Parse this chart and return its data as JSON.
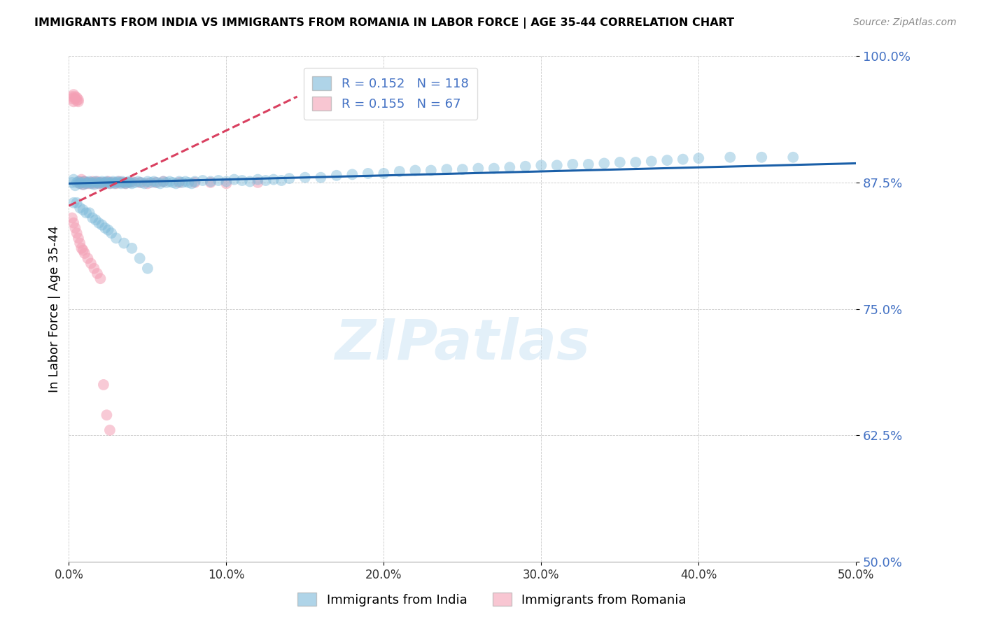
{
  "title": "IMMIGRANTS FROM INDIA VS IMMIGRANTS FROM ROMANIA IN LABOR FORCE | AGE 35-44 CORRELATION CHART",
  "source": "Source: ZipAtlas.com",
  "ylabel": "In Labor Force | Age 35-44",
  "xlim": [
    0.0,
    0.5
  ],
  "ylim": [
    0.5,
    1.0
  ],
  "yticks": [
    0.5,
    0.625,
    0.75,
    0.875,
    1.0
  ],
  "ytick_labels": [
    "50.0%",
    "62.5%",
    "75.0%",
    "87.5%",
    "100.0%"
  ],
  "xticks": [
    0.0,
    0.1,
    0.2,
    0.3,
    0.4,
    0.5
  ],
  "xtick_labels": [
    "0.0%",
    "10.0%",
    "20.0%",
    "30.0%",
    "40.0%",
    "50.0%"
  ],
  "india_color": "#7ab8d9",
  "romania_color": "#f4a0b5",
  "india_trend_color": "#1a5fa8",
  "romania_trend_color": "#d94060",
  "legend_india_R": "0.152",
  "legend_india_N": "118",
  "legend_romania_R": "0.155",
  "legend_romania_N": "67",
  "watermark": "ZIPatlas",
  "india_scatter_x": [
    0.002,
    0.003,
    0.004,
    0.005,
    0.006,
    0.007,
    0.008,
    0.009,
    0.01,
    0.011,
    0.012,
    0.013,
    0.014,
    0.015,
    0.016,
    0.017,
    0.018,
    0.019,
    0.02,
    0.021,
    0.022,
    0.023,
    0.024,
    0.025,
    0.026,
    0.027,
    0.028,
    0.029,
    0.03,
    0.031,
    0.032,
    0.033,
    0.034,
    0.035,
    0.036,
    0.037,
    0.038,
    0.039,
    0.04,
    0.042,
    0.044,
    0.046,
    0.048,
    0.05,
    0.052,
    0.054,
    0.056,
    0.058,
    0.06,
    0.062,
    0.064,
    0.066,
    0.068,
    0.07,
    0.072,
    0.074,
    0.076,
    0.078,
    0.08,
    0.085,
    0.09,
    0.095,
    0.1,
    0.105,
    0.11,
    0.115,
    0.12,
    0.125,
    0.13,
    0.135,
    0.14,
    0.15,
    0.16,
    0.17,
    0.18,
    0.19,
    0.2,
    0.21,
    0.22,
    0.23,
    0.24,
    0.25,
    0.26,
    0.27,
    0.28,
    0.29,
    0.3,
    0.31,
    0.32,
    0.33,
    0.34,
    0.35,
    0.36,
    0.37,
    0.38,
    0.39,
    0.4,
    0.42,
    0.44,
    0.46,
    0.003,
    0.005,
    0.007,
    0.009,
    0.011,
    0.013,
    0.015,
    0.017,
    0.019,
    0.021,
    0.023,
    0.025,
    0.027,
    0.03,
    0.035,
    0.04,
    0.045,
    0.05
  ],
  "india_scatter_y": [
    0.875,
    0.878,
    0.872,
    0.875,
    0.876,
    0.874,
    0.875,
    0.873,
    0.876,
    0.874,
    0.875,
    0.876,
    0.874,
    0.875,
    0.873,
    0.876,
    0.875,
    0.874,
    0.875,
    0.876,
    0.874,
    0.875,
    0.876,
    0.875,
    0.874,
    0.875,
    0.876,
    0.874,
    0.875,
    0.876,
    0.875,
    0.874,
    0.876,
    0.875,
    0.874,
    0.875,
    0.876,
    0.875,
    0.874,
    0.875,
    0.876,
    0.875,
    0.874,
    0.876,
    0.875,
    0.876,
    0.875,
    0.874,
    0.876,
    0.875,
    0.876,
    0.875,
    0.874,
    0.876,
    0.875,
    0.876,
    0.875,
    0.874,
    0.876,
    0.877,
    0.876,
    0.877,
    0.876,
    0.878,
    0.877,
    0.876,
    0.878,
    0.877,
    0.878,
    0.877,
    0.879,
    0.88,
    0.88,
    0.882,
    0.883,
    0.884,
    0.884,
    0.886,
    0.887,
    0.887,
    0.888,
    0.888,
    0.889,
    0.889,
    0.89,
    0.891,
    0.892,
    0.892,
    0.893,
    0.893,
    0.894,
    0.895,
    0.895,
    0.896,
    0.897,
    0.898,
    0.899,
    0.9,
    0.9,
    0.9,
    0.855,
    0.855,
    0.85,
    0.848,
    0.845,
    0.845,
    0.84,
    0.838,
    0.835,
    0.833,
    0.83,
    0.828,
    0.825,
    0.82,
    0.815,
    0.81,
    0.8,
    0.79
  ],
  "romania_scatter_x": [
    0.002,
    0.002,
    0.003,
    0.003,
    0.004,
    0.004,
    0.005,
    0.005,
    0.006,
    0.006,
    0.007,
    0.007,
    0.008,
    0.008,
    0.009,
    0.009,
    0.01,
    0.01,
    0.011,
    0.012,
    0.013,
    0.014,
    0.015,
    0.016,
    0.017,
    0.018,
    0.019,
    0.02,
    0.021,
    0.022,
    0.023,
    0.024,
    0.025,
    0.026,
    0.028,
    0.03,
    0.032,
    0.034,
    0.036,
    0.038,
    0.04,
    0.045,
    0.05,
    0.055,
    0.06,
    0.07,
    0.08,
    0.09,
    0.1,
    0.12,
    0.002,
    0.003,
    0.004,
    0.005,
    0.006,
    0.007,
    0.008,
    0.009,
    0.01,
    0.012,
    0.014,
    0.016,
    0.018,
    0.02,
    0.022,
    0.024,
    0.026
  ],
  "romania_scatter_y": [
    0.96,
    0.958,
    0.962,
    0.955,
    0.958,
    0.96,
    0.956,
    0.959,
    0.955,
    0.957,
    0.876,
    0.874,
    0.878,
    0.875,
    0.873,
    0.876,
    0.875,
    0.876,
    0.874,
    0.875,
    0.874,
    0.875,
    0.876,
    0.874,
    0.875,
    0.876,
    0.874,
    0.875,
    0.874,
    0.875,
    0.874,
    0.875,
    0.876,
    0.874,
    0.875,
    0.874,
    0.876,
    0.875,
    0.874,
    0.875,
    0.876,
    0.875,
    0.874,
    0.875,
    0.876,
    0.875,
    0.875,
    0.875,
    0.874,
    0.875,
    0.84,
    0.835,
    0.83,
    0.825,
    0.82,
    0.815,
    0.81,
    0.808,
    0.805,
    0.8,
    0.795,
    0.79,
    0.785,
    0.78,
    0.675,
    0.645,
    0.63
  ],
  "india_trend_x0": 0.0,
  "india_trend_x1": 0.5,
  "india_trend_y0": 0.874,
  "india_trend_y1": 0.894,
  "romania_trend_x0": 0.0,
  "romania_trend_x1": 0.145,
  "romania_trend_y0": 0.852,
  "romania_trend_y1": 0.96
}
